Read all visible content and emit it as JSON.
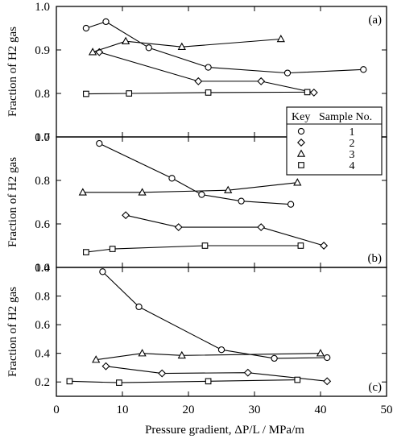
{
  "chart_data": {
    "type": "line",
    "xlabel": "Pressure gradient, ΔP/L / MPa/m",
    "xlim": [
      0,
      50
    ],
    "xticks": [
      0,
      10,
      20,
      30,
      40,
      50
    ],
    "legend": {
      "placement": "right",
      "headers": [
        "Key",
        "Sample No."
      ],
      "entries": [
        {
          "marker": "circle",
          "label": "1"
        },
        {
          "marker": "diamond",
          "label": "2"
        },
        {
          "marker": "triangle",
          "label": "3"
        },
        {
          "marker": "square",
          "label": "4"
        }
      ]
    },
    "panels": [
      {
        "tag": "(a)",
        "ylabel": "Fraction of H2 gas",
        "ylim": [
          0.7,
          1.0
        ],
        "yticks": [
          0.7,
          0.8,
          0.9,
          1.0
        ],
        "series": [
          {
            "marker": "circle",
            "x": [
              4.5,
              7.5,
              14,
              23,
              35,
              46.5
            ],
            "y": [
              0.95,
              0.965,
              0.905,
              0.86,
              0.847,
              0.855
            ]
          },
          {
            "marker": "diamond",
            "x": [
              6.5,
              21.5,
              31,
              39
            ],
            "y": [
              0.895,
              0.828,
              0.828,
              0.802
            ]
          },
          {
            "marker": "triangle",
            "x": [
              5.5,
              10.5,
              19,
              34
            ],
            "y": [
              0.895,
              0.92,
              0.907,
              0.925
            ]
          },
          {
            "marker": "square",
            "x": [
              4.5,
              11,
              23,
              38
            ],
            "y": [
              0.799,
              0.8,
              0.802,
              0.803
            ]
          }
        ]
      },
      {
        "tag": "(b)",
        "ylabel": "Fraction of H2 gas",
        "ylim": [
          0.4,
          1.0
        ],
        "yticks": [
          0.4,
          0.6,
          0.8,
          1.0
        ],
        "series": [
          {
            "marker": "circle",
            "x": [
              6.5,
              17.5,
              22,
              28,
              35.5
            ],
            "y": [
              0.97,
              0.81,
              0.735,
              0.705,
              0.69
            ]
          },
          {
            "marker": "diamond",
            "x": [
              10.5,
              18.5,
              31,
              40.5
            ],
            "y": [
              0.64,
              0.585,
              0.585,
              0.5
            ]
          },
          {
            "marker": "triangle",
            "x": [
              4,
              13,
              26,
              36.5
            ],
            "y": [
              0.745,
              0.745,
              0.755,
              0.79
            ]
          },
          {
            "marker": "square",
            "x": [
              4.5,
              8.5,
              22.5,
              37
            ],
            "y": [
              0.47,
              0.485,
              0.5,
              0.5
            ]
          }
        ]
      },
      {
        "tag": "(c)",
        "ylabel": "Fraction of H2 gas",
        "ylim": [
          0.1,
          1.0
        ],
        "yticks": [
          0.2,
          0.4,
          0.6,
          0.8,
          1.0
        ],
        "series": [
          {
            "marker": "circle",
            "x": [
              7,
              12.5,
              25,
              33,
              41
            ],
            "y": [
              0.97,
              0.725,
              0.425,
              0.365,
              0.37
            ]
          },
          {
            "marker": "diamond",
            "x": [
              7.5,
              16,
              29,
              41
            ],
            "y": [
              0.31,
              0.26,
              0.265,
              0.205
            ]
          },
          {
            "marker": "triangle",
            "x": [
              6,
              13,
              19,
              40
            ],
            "y": [
              0.355,
              0.4,
              0.385,
              0.4
            ]
          },
          {
            "marker": "square",
            "x": [
              2,
              9.5,
              23,
              36.5
            ],
            "y": [
              0.205,
              0.195,
              0.205,
              0.215
            ]
          }
        ]
      }
    ]
  }
}
